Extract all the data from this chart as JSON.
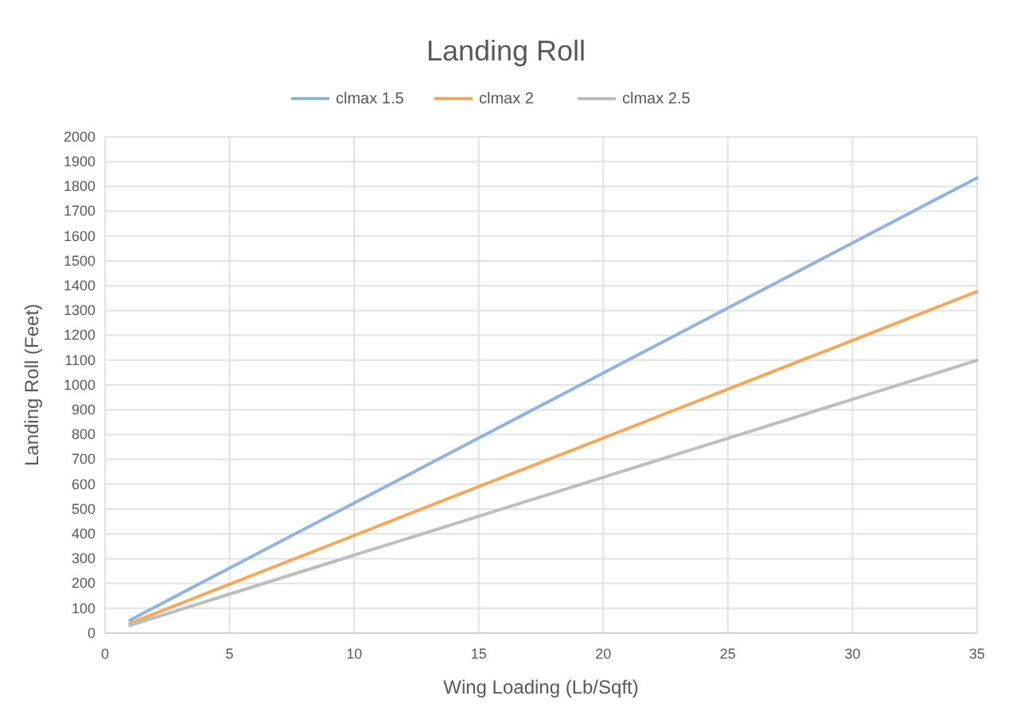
{
  "chart_data": {
    "type": "line",
    "title": "Landing Roll",
    "xlabel": "Wing Loading (Lb/Sqft)",
    "ylabel": "Landing Roll (Feet)",
    "x": [
      1,
      5,
      10,
      15,
      20,
      25,
      30,
      35
    ],
    "series": [
      {
        "name": "clmax 1.5",
        "color": "#8fb4e0",
        "values": [
          52,
          262,
          524,
          786,
          1048,
          1310,
          1572,
          1834
        ]
      },
      {
        "name": "clmax 2",
        "color": "#f4a95a",
        "values": [
          39,
          197,
          393,
          590,
          786,
          983,
          1179,
          1376
        ]
      },
      {
        "name": "clmax 2.5",
        "color": "#bdbdbd",
        "values": [
          31,
          157,
          314,
          471,
          628,
          785,
          942,
          1099
        ]
      }
    ],
    "xlim": [
      0,
      35
    ],
    "xticks": [
      0,
      5,
      10,
      15,
      20,
      25,
      30,
      35
    ],
    "ylim": [
      0,
      2000
    ],
    "yticks": [
      0,
      100,
      200,
      300,
      400,
      500,
      600,
      700,
      800,
      900,
      1000,
      1100,
      1200,
      1300,
      1400,
      1500,
      1600,
      1700,
      1800,
      1900,
      2000
    ],
    "grid": true,
    "legend": "top",
    "marker": "none",
    "line_style": "solid"
  }
}
